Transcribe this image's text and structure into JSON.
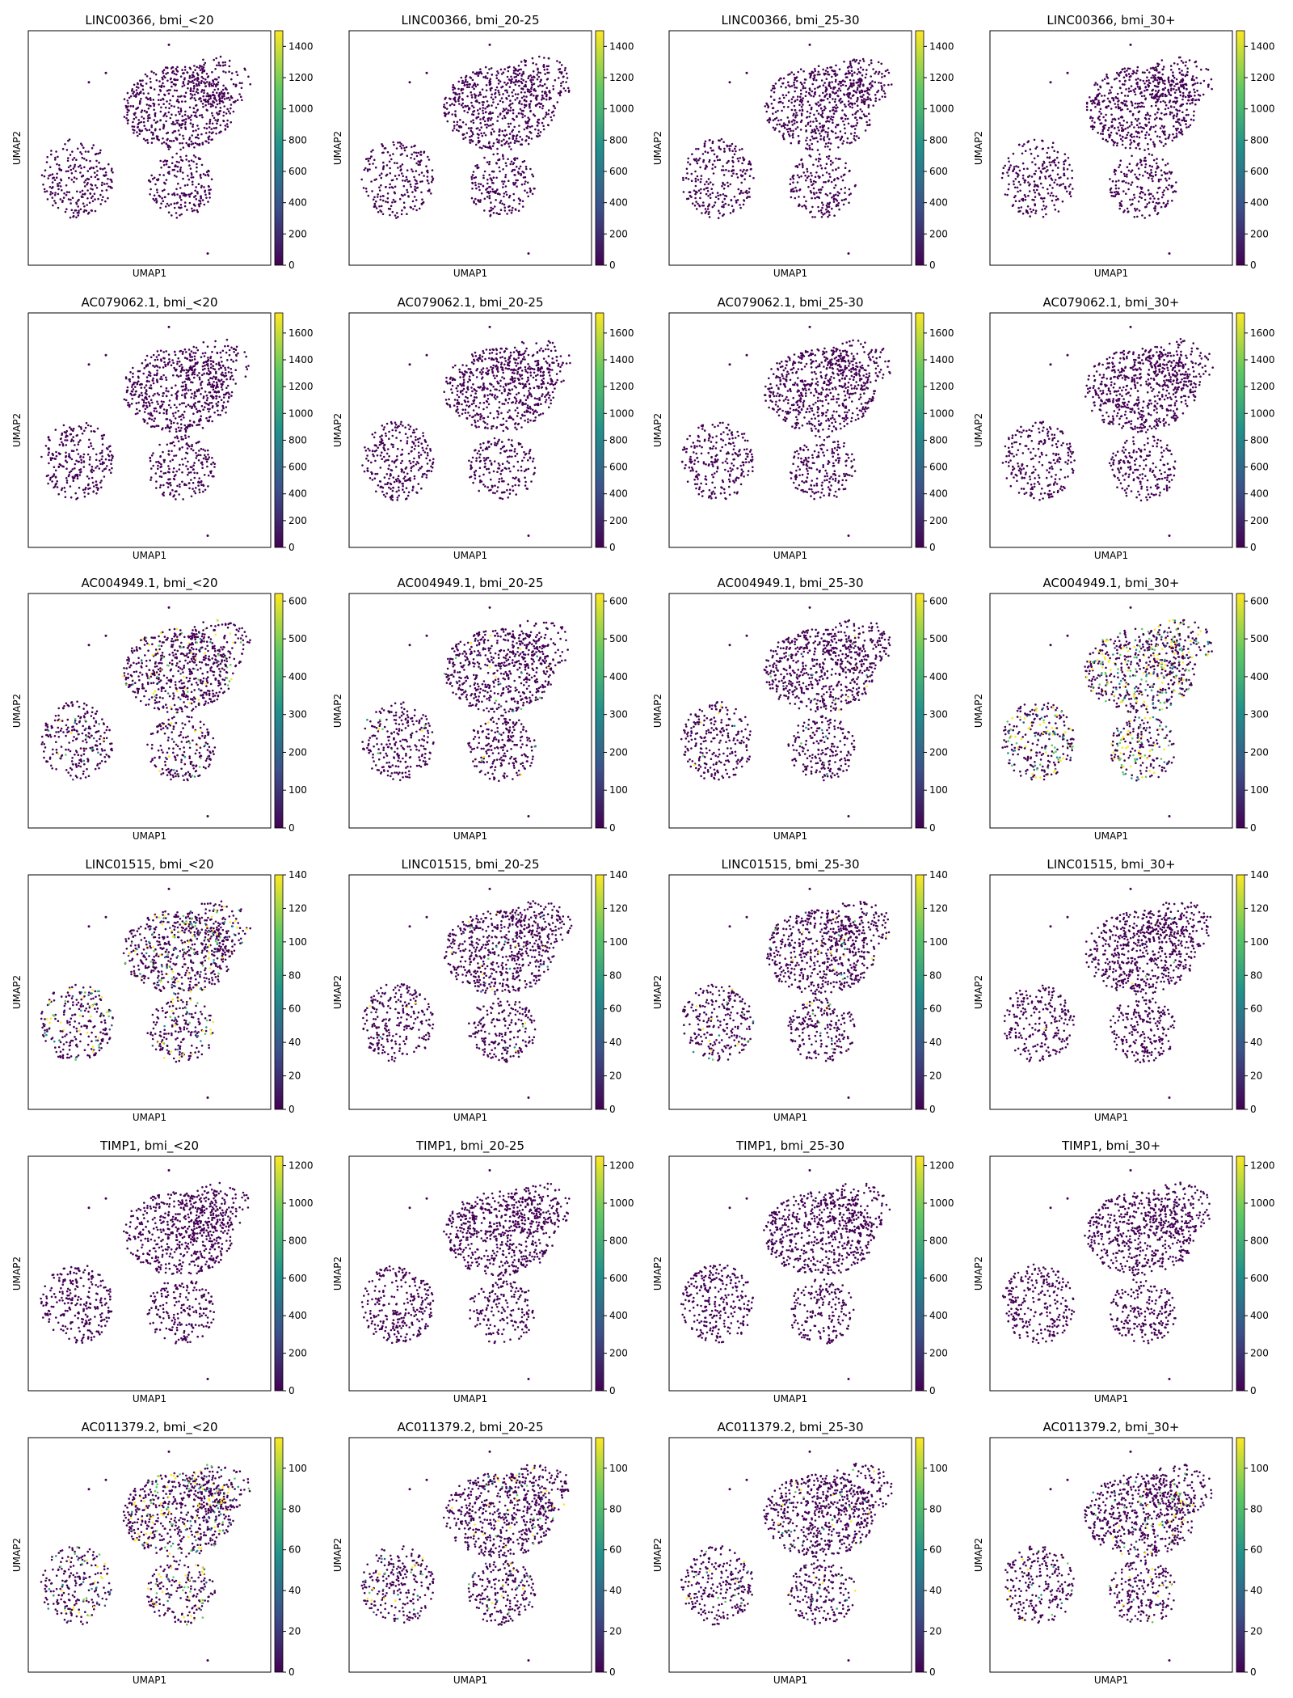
{
  "figure": {
    "colormap": [
      "#440154",
      "#3b528b",
      "#21918c",
      "#5ec962",
      "#fde725"
    ],
    "background": "#ffffff",
    "xlabel": "UMAP1",
    "ylabel": "UMAP2"
  },
  "chart_data": {
    "type": "scatter",
    "embedding": "UMAP",
    "xlabel": "UMAP1",
    "ylabel": "UMAP2",
    "groups": [
      "bmi_<20",
      "bmi_20-25",
      "bmi_25-30",
      "bmi_30+"
    ],
    "genes": [
      {
        "name": "LINC00366",
        "colorbar_range": [
          0,
          1500
        ],
        "colorbar_ticks": [
          0,
          200,
          400,
          600,
          800,
          1000,
          1200,
          1400
        ],
        "panels": [
          {
            "title": "LINC00366, bmi_<20",
            "hotspot_density": 0
          },
          {
            "title": "LINC00366, bmi_20-25",
            "hotspot_density": 0
          },
          {
            "title": "LINC00366, bmi_25-30",
            "hotspot_density": 0
          },
          {
            "title": "LINC00366, bmi_30+",
            "hotspot_density": 0
          }
        ]
      },
      {
        "name": "AC079062.1",
        "colorbar_range": [
          0,
          1750
        ],
        "colorbar_ticks": [
          0,
          200,
          400,
          600,
          800,
          1000,
          1200,
          1400,
          1600
        ],
        "panels": [
          {
            "title": "AC079062.1, bmi_<20",
            "hotspot_density": 0
          },
          {
            "title": "AC079062.1, bmi_20-25",
            "hotspot_density": 0
          },
          {
            "title": "AC079062.1, bmi_25-30",
            "hotspot_density": 0
          },
          {
            "title": "AC079062.1, bmi_30+",
            "hotspot_density": 0
          }
        ]
      },
      {
        "name": "AC004949.1",
        "colorbar_range": [
          0,
          620
        ],
        "colorbar_ticks": [
          0,
          100,
          200,
          300,
          400,
          500,
          600
        ],
        "panels": [
          {
            "title": "AC004949.1, bmi_<20",
            "hotspot_density": 0.1
          },
          {
            "title": "AC004949.1, bmi_20-25",
            "hotspot_density": 0.03
          },
          {
            "title": "AC004949.1, bmi_25-30",
            "hotspot_density": 0.03
          },
          {
            "title": "AC004949.1, bmi_30+",
            "hotspot_density": 0.35
          }
        ]
      },
      {
        "name": "LINC01515",
        "colorbar_range": [
          0,
          140
        ],
        "colorbar_ticks": [
          0,
          20,
          40,
          60,
          80,
          100,
          120,
          140
        ],
        "panels": [
          {
            "title": "LINC01515, bmi_<20",
            "hotspot_density": 0.2
          },
          {
            "title": "LINC01515, bmi_20-25",
            "hotspot_density": 0.04
          },
          {
            "title": "LINC01515, bmi_25-30",
            "hotspot_density": 0.06
          },
          {
            "title": "LINC01515, bmi_30+",
            "hotspot_density": 0.01
          }
        ]
      },
      {
        "name": "TIMP1",
        "colorbar_range": [
          0,
          1250
        ],
        "colorbar_ticks": [
          0,
          200,
          400,
          600,
          800,
          1000,
          1200
        ],
        "panels": [
          {
            "title": "TIMP1, bmi_<20",
            "hotspot_density": 0
          },
          {
            "title": "TIMP1, bmi_20-25",
            "hotspot_density": 0
          },
          {
            "title": "TIMP1, bmi_25-30",
            "hotspot_density": 0
          },
          {
            "title": "TIMP1, bmi_30+",
            "hotspot_density": 0
          }
        ]
      },
      {
        "name": "AC011379.2",
        "colorbar_range": [
          0,
          115
        ],
        "colorbar_ticks": [
          0,
          20,
          40,
          60,
          80,
          100
        ],
        "panels": [
          {
            "title": "AC011379.2, bmi_<20",
            "hotspot_density": 0.2
          },
          {
            "title": "AC011379.2, bmi_20-25",
            "hotspot_density": 0.1
          },
          {
            "title": "AC011379.2, bmi_25-30",
            "hotspot_density": 0.06
          },
          {
            "title": "AC011379.2, bmi_30+",
            "hotspot_density": 0.1
          }
        ]
      }
    ]
  }
}
